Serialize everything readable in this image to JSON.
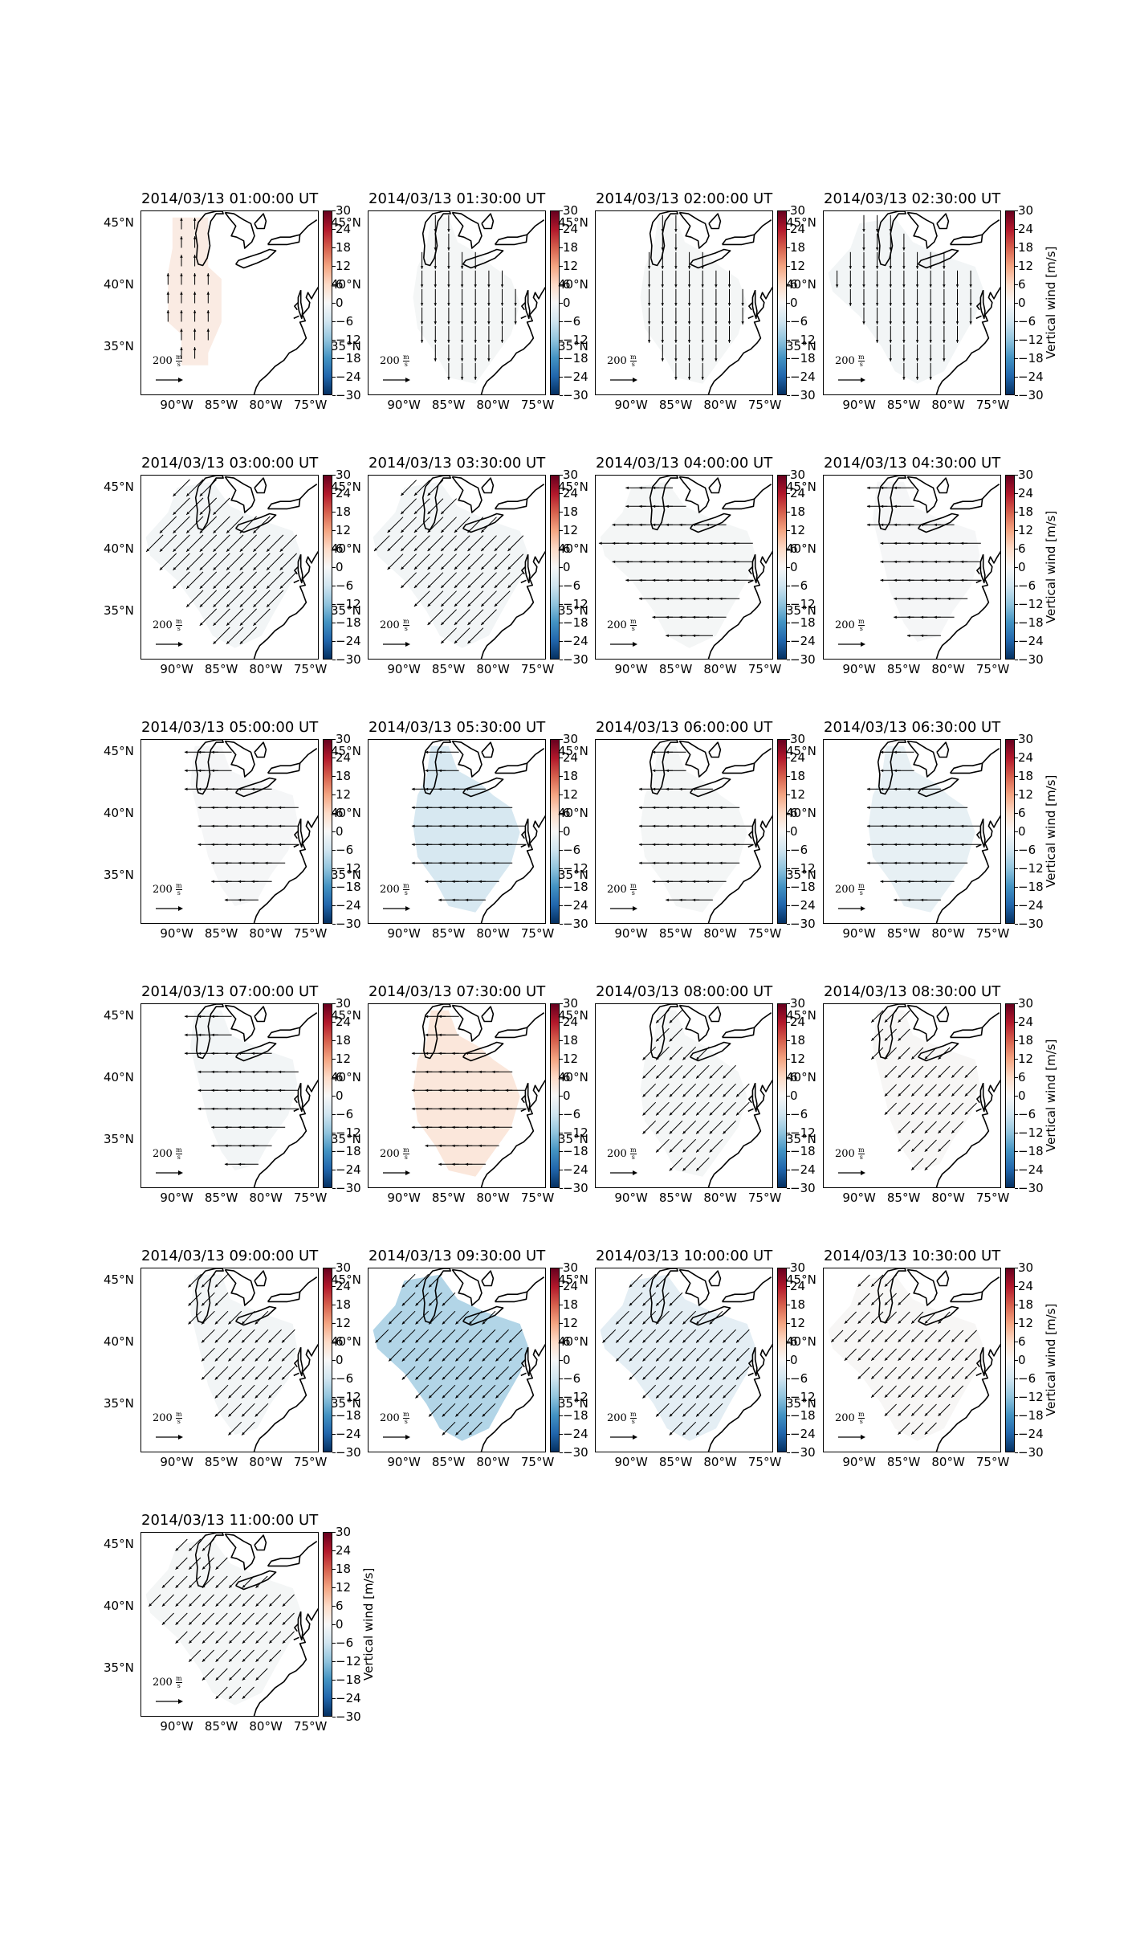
{
  "figure": {
    "panels": [
      {
        "title": "2014/03/13 01:00:00 UT",
        "vertical_wind": 2.5,
        "wind_dir": "north",
        "wind_speed": 0.2,
        "region": "west",
        "colorbar_unit_label": ""
      },
      {
        "title": "2014/03/13 01:30:00 UT",
        "vertical_wind": -0.5,
        "wind_dir": "south",
        "wind_speed": 0.5,
        "region": "mid",
        "colorbar_unit_label": ""
      },
      {
        "title": "2014/03/13 02:00:00 UT",
        "vertical_wind": -0.5,
        "wind_dir": "south",
        "wind_speed": 0.5,
        "region": "mid",
        "colorbar_unit_label": ""
      },
      {
        "title": "2014/03/13 02:30:00 UT",
        "vertical_wind": -0.8,
        "wind_dir": "south",
        "wind_speed": 0.5,
        "region": "wide",
        "colorbar_unit_label": "Vertical wind [m/s]"
      },
      {
        "title": "2014/03/13 03:00:00 UT",
        "vertical_wind": -0.8,
        "wind_dir": "southwest",
        "wind_speed": 0.9,
        "region": "wide",
        "colorbar_unit_label": ""
      },
      {
        "title": "2014/03/13 03:30:00 UT",
        "vertical_wind": -0.8,
        "wind_dir": "southwest",
        "wind_speed": 0.8,
        "region": "wide",
        "colorbar_unit_label": ""
      },
      {
        "title": "2014/03/13 04:00:00 UT",
        "vertical_wind": -0.5,
        "wind_dir": "west",
        "wind_speed": 0.7,
        "region": "wide",
        "colorbar_unit_label": ""
      },
      {
        "title": "2014/03/13 04:30:00 UT",
        "vertical_wind": -0.3,
        "wind_dir": "west",
        "wind_speed": 0.7,
        "region": "east",
        "colorbar_unit_label": "Vertical wind [m/s]"
      },
      {
        "title": "2014/03/13 05:00:00 UT",
        "vertical_wind": -0.3,
        "wind_dir": "west",
        "wind_speed": 0.7,
        "region": "east",
        "colorbar_unit_label": ""
      },
      {
        "title": "2014/03/13 05:30:00 UT",
        "vertical_wind": -5.0,
        "wind_dir": "west",
        "wind_speed": 0.7,
        "region": "mid",
        "colorbar_unit_label": ""
      },
      {
        "title": "2014/03/13 06:00:00 UT",
        "vertical_wind": -0.5,
        "wind_dir": "west",
        "wind_speed": 0.7,
        "region": "mid",
        "colorbar_unit_label": ""
      },
      {
        "title": "2014/03/13 06:30:00 UT",
        "vertical_wind": -2.5,
        "wind_dir": "west",
        "wind_speed": 0.7,
        "region": "mid",
        "colorbar_unit_label": "Vertical wind [m/s]"
      },
      {
        "title": "2014/03/13 07:00:00 UT",
        "vertical_wind": -0.8,
        "wind_dir": "west",
        "wind_speed": 0.7,
        "region": "east",
        "colorbar_unit_label": ""
      },
      {
        "title": "2014/03/13 07:30:00 UT",
        "vertical_wind": 3.5,
        "wind_dir": "west",
        "wind_speed": 0.7,
        "region": "mid",
        "colorbar_unit_label": ""
      },
      {
        "title": "2014/03/13 08:00:00 UT",
        "vertical_wind": -0.5,
        "wind_dir": "southwest",
        "wind_speed": 0.6,
        "region": "mid",
        "colorbar_unit_label": ""
      },
      {
        "title": "2014/03/13 08:30:00 UT",
        "vertical_wind": 0.3,
        "wind_dir": "southwest",
        "wind_speed": 0.5,
        "region": "east",
        "colorbar_unit_label": "Vertical wind [m/s]"
      },
      {
        "title": "2014/03/13 09:00:00 UT",
        "vertical_wind": -0.8,
        "wind_dir": "southwest",
        "wind_speed": 0.6,
        "region": "east",
        "colorbar_unit_label": ""
      },
      {
        "title": "2014/03/13 09:30:00 UT",
        "vertical_wind": -9.0,
        "wind_dir": "southwest",
        "wind_speed": 0.6,
        "region": "wide",
        "colorbar_unit_label": ""
      },
      {
        "title": "2014/03/13 10:00:00 UT",
        "vertical_wind": -3.0,
        "wind_dir": "southwest",
        "wind_speed": 0.6,
        "region": "wide",
        "colorbar_unit_label": ""
      },
      {
        "title": "2014/03/13 10:30:00 UT",
        "vertical_wind": 0.3,
        "wind_dir": "southwest",
        "wind_speed": 0.5,
        "region": "wide",
        "colorbar_unit_label": "Vertical wind [m/s]"
      },
      {
        "title": "2014/03/13 11:00:00 UT",
        "vertical_wind": -0.5,
        "wind_dir": "southwest",
        "wind_speed": 0.5,
        "region": "wide",
        "colorbar_unit_label": "Vertical wind [m/s]"
      }
    ],
    "lat_ticks": [
      "45°N",
      "40°N",
      "35°N"
    ],
    "lon_ticks": [
      "90°W",
      "85°W",
      "80°W",
      "75°W"
    ],
    "colorbar": {
      "ticks": [
        "30",
        "24",
        "18",
        "12",
        "6",
        "0",
        "−6",
        "−12",
        "−18",
        "−24",
        "−30"
      ],
      "range": [
        -30,
        30
      ],
      "colormap": "RdBu_r"
    },
    "quiver_key_value": "200",
    "quiver_key_unit_num": "m",
    "quiver_key_unit_den": "s"
  }
}
